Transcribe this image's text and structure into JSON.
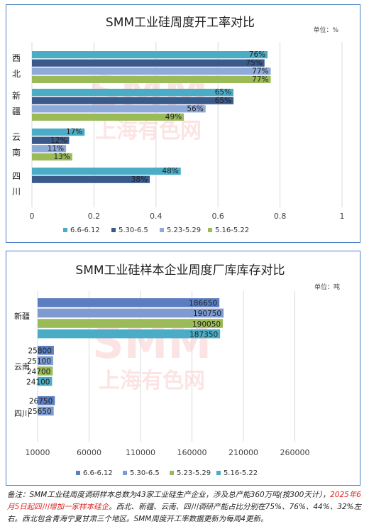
{
  "charts": [
    {
      "title": "SMM工业硅周度开工率对比",
      "unit": "单位：%",
      "watermark_main": "SMM",
      "watermark_sub": "上海有色网",
      "chart_data": {
        "type": "bar",
        "orientation": "horizontal",
        "categories": [
          "西北",
          "新疆",
          "云南",
          "四川"
        ],
        "series": [
          {
            "name": "6.6-6.12",
            "color": "#4bacc6",
            "values": [
              0.76,
              0.65,
              0.17,
              0.48
            ],
            "labels": [
              "76%",
              "65%",
              "17%",
              "48%"
            ]
          },
          {
            "name": "5.30-6.5",
            "color": "#3a5a8c",
            "values": [
              0.75,
              0.65,
              0.12,
              0.38
            ],
            "labels": [
              "75%",
              "65%",
              "12%",
              "38%"
            ]
          },
          {
            "name": "5.23-5.29",
            "color": "#8eaadb",
            "values": [
              0.77,
              0.56,
              0.11,
              null
            ],
            "labels": [
              "77%",
              "56%",
              "11%",
              ""
            ]
          },
          {
            "name": "5.16-5.22",
            "color": "#9bbb59",
            "values": [
              0.77,
              0.49,
              0.13,
              null
            ],
            "labels": [
              "77%",
              "49%",
              "13%",
              ""
            ]
          }
        ],
        "xlim": [
          0,
          1
        ],
        "ticks": [
          0,
          0.2,
          0.4,
          0.6,
          0.8,
          1
        ],
        "tick_labels": [
          "0",
          "0.2",
          "0.4",
          "0.6",
          "0.8",
          "1"
        ],
        "grid": true,
        "legend": "bottom"
      }
    },
    {
      "title": "SMM工业硅样本企业周度厂库库存对比",
      "unit": "单位：吨",
      "watermark_main": "SMM",
      "watermark_sub": "上海有色网",
      "chart_data": {
        "type": "bar",
        "orientation": "horizontal",
        "categories": [
          "新疆",
          "云南",
          "四川"
        ],
        "series": [
          {
            "name": "6.6-6.12",
            "color": "#5b7ec2",
            "values": [
              186650,
              25800,
              26750
            ],
            "labels": [
              "186650",
              "25800",
              "26750"
            ]
          },
          {
            "name": "5.30-6.5",
            "color": "#7d9bd1",
            "values": [
              190750,
              25100,
              25650
            ],
            "labels": [
              "190750",
              "25100",
              "25650"
            ]
          },
          {
            "name": "5.23-5.29",
            "color": "#9bbb59",
            "values": [
              190050,
              24700,
              null
            ],
            "labels": [
              "190050",
              "24700",
              ""
            ]
          },
          {
            "name": "5.16-5.22",
            "color": "#4bacc6",
            "values": [
              187350,
              24100,
              null
            ],
            "labels": [
              "187350",
              "24100",
              ""
            ]
          }
        ],
        "xlim": [
          10000,
          310000
        ],
        "ticks": [
          10000,
          60000,
          110000,
          160000,
          210000,
          260000
        ],
        "tick_labels": [
          "10000",
          "60000",
          "110000",
          "160000",
          "210000",
          "260000"
        ],
        "grid": true,
        "legend": "bottom"
      }
    }
  ],
  "note": {
    "part1": "备注：SMM工业硅周度调研样本总数为43家工业硅生产企业，涉及总产能360万吨(按300天计），",
    "part2": "2025年6月5日起四川增加一家样本硅企",
    "part3": "。西北、新疆、云南、四川调研产能占比分别在75%、76%、44%、32%左右。西北包含青海宁夏甘肃三个地区。SMM周度开工率数据更新为每周4更新。"
  }
}
